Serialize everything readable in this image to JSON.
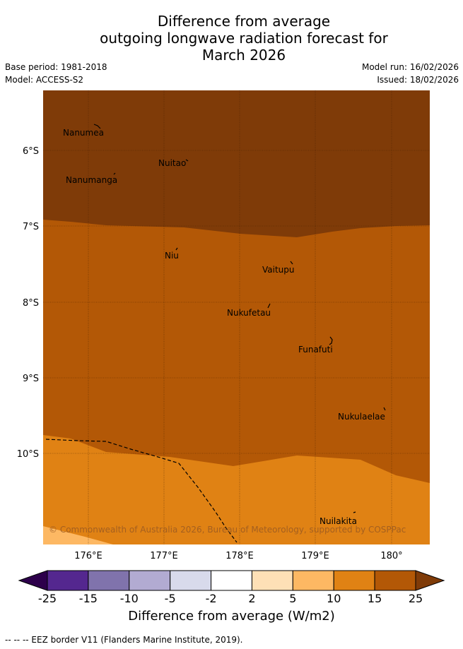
{
  "title": {
    "line1": "Difference from average",
    "line2": "outgoing longwave radiation forecast for",
    "line3": "March 2026"
  },
  "meta": {
    "base_period": "Base period: 1981-2018",
    "model": "Model: ACCESS-S2",
    "model_run": "Model run: 16/02/2026",
    "issued": "Issued: 18/02/2026"
  },
  "map": {
    "lat_labels": [
      "6°S",
      "7°S",
      "8°S",
      "9°S",
      "10°S"
    ],
    "lon_labels": [
      "176°E",
      "177°E",
      "178°E",
      "179°E",
      "180°"
    ],
    "places": {
      "nanumea": "Nanumea",
      "nuitao": "Nuitao",
      "nanumanga": "Nanumanga",
      "niu": "Niu",
      "vaitupu": "Vaitupu",
      "nukufetau": "Nukufetau",
      "funafuti": "Funafuti",
      "nukulaelae": "Nukulaelae",
      "nuilakita": "Nuilakita"
    },
    "copyright": "© Commonwealth of Australia 2026, Bureau of Meteorology, supported by COSPPac"
  },
  "colorbar": {
    "ticks": [
      "-25",
      "-15",
      "-10",
      "-5",
      "-2",
      "2",
      "5",
      "10",
      "15",
      "25"
    ],
    "colors": [
      "#54278f",
      "#8073ac",
      "#b2abd2",
      "#d8daeb",
      "#ffffff",
      "#fee0b6",
      "#fdb863",
      "#e08214",
      "#b35806"
    ],
    "under_color": "#2d004b",
    "over_color": "#7f3b08",
    "title": "Difference from average (W/m2)"
  },
  "footnote": "--  --  -- EEZ border V11 (Flanders Marine Institute, 2019)."
}
